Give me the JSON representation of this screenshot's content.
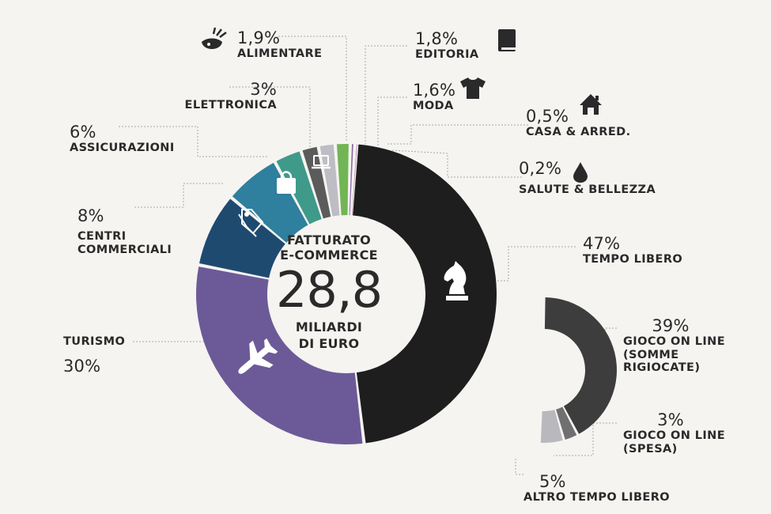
{
  "center": {
    "line1": "FATTURATO",
    "line2": "E-COMMERCE",
    "value": "28,8",
    "line3": "MILIARDI",
    "line4": "DI EURO"
  },
  "chart_data": [
    {
      "type": "pie",
      "variant": "donut",
      "total": "28,8 MILIARDI DI EURO",
      "slices": [
        {
          "label": "TEMPO LIBERO",
          "value": 47,
          "display": "47%",
          "color": "#1e1e1e",
          "icon": "chess-knight-icon"
        },
        {
          "label": "TURISMO",
          "value": 30,
          "display": "30%",
          "color": "#6c5a98",
          "icon": "airplane-icon"
        },
        {
          "label": "CENTRI COMMERCIALI",
          "value": 8,
          "display": "8%",
          "color": "#1f4a70",
          "icon": "tag-icon"
        },
        {
          "label": "ASSICURAZIONI",
          "value": 6,
          "display": "6%",
          "color": "#2f7f9e",
          "icon": "shopping-bag-icon"
        },
        {
          "label": "ELETTRONICA",
          "value": 3,
          "display": "3%",
          "color": "#3f9a8a",
          "icon": "laptop-icon"
        },
        {
          "label": "ALIMENTARE",
          "value": 1.9,
          "display": "1,9%",
          "color": "#5b5b5b",
          "icon": "food-icon"
        },
        {
          "label": "EDITORIA",
          "value": 1.8,
          "display": "1,8%",
          "color": "#bdbdc3",
          "icon": "book-icon"
        },
        {
          "label": "MODA",
          "value": 1.6,
          "display": "1,6%",
          "color": "#72b555",
          "icon": "tshirt-icon"
        },
        {
          "label": "CASA & ARRED.",
          "value": 0.5,
          "display": "0,5%",
          "color": "#8a6aa8",
          "icon": "house-icon"
        },
        {
          "label": "SALUTE & BELLEZZA",
          "value": 0.2,
          "display": "0,2%",
          "color": "#b86aa8",
          "icon": "drop-icon"
        }
      ]
    },
    {
      "type": "pie",
      "variant": "half-donut breakdown of TEMPO LIBERO",
      "slices": [
        {
          "label": "GIOCO ON LINE (SOMME RIGIOCATE)",
          "value": 39,
          "display": "39%",
          "color": "#3d3d3d"
        },
        {
          "label": "GIOCO ON LINE (SPESA)",
          "value": 3,
          "display": "3%",
          "color": "#707070"
        },
        {
          "label": "ALTRO TEMPO LIBERO",
          "value": 5,
          "display": "5%",
          "color": "#b9b9bd"
        }
      ]
    }
  ],
  "labels": {
    "alimentare": {
      "pct": "1,9%",
      "name": "ALIMENTARE"
    },
    "editoria": {
      "pct": "1,8%",
      "name": "EDITORIA"
    },
    "elettronica": {
      "pct": "3%",
      "name": "ELETTRONICA"
    },
    "moda": {
      "pct": "1,6%",
      "name": "MODA"
    },
    "assicurazioni": {
      "pct": "6%",
      "name": "ASSICURAZIONI"
    },
    "casa": {
      "pct": "0,5%",
      "name": "CASA & ARRED."
    },
    "salute": {
      "pct": "0,2%",
      "name": "SALUTE & BELLEZZA"
    },
    "centri": {
      "pct": "8%",
      "name1": "CENTRI",
      "name2": "COMMERCIALI"
    },
    "tempo_libero": {
      "pct": "47%",
      "name": "TEMPO LIBERO"
    },
    "turismo": {
      "pct": "30%",
      "name": "TURISMO"
    },
    "gioco_rig": {
      "pct": "39%",
      "name1": "GIOCO ON LINE",
      "name2": "(SOMME",
      "name3": "RIGIOCATE)"
    },
    "gioco_spesa": {
      "pct": "3%",
      "name1": "GIOCO ON LINE",
      "name2": "(SPESA)"
    },
    "altro": {
      "pct": "5%",
      "name": "ALTRO TEMPO LIBERO"
    }
  }
}
